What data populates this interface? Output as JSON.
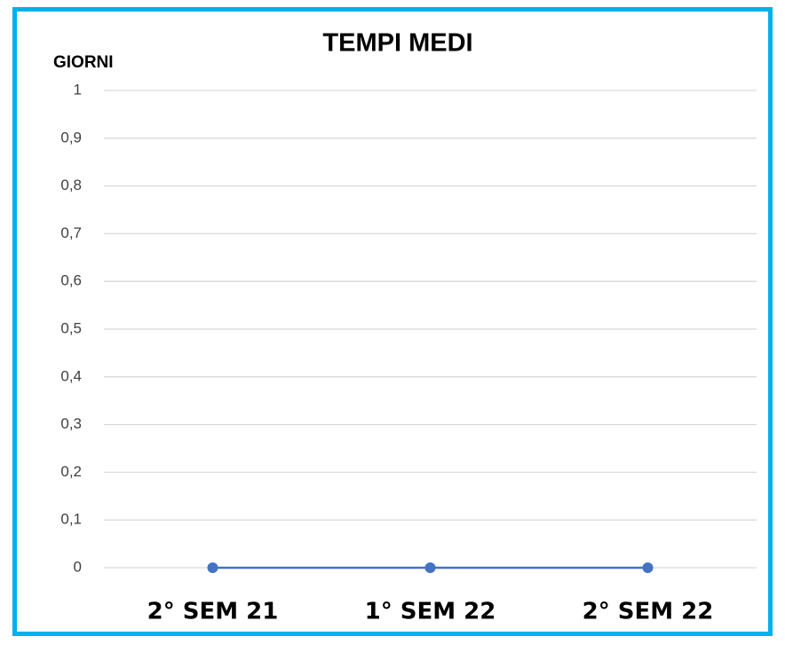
{
  "chart_data": {
    "type": "line",
    "title": "TEMPI MEDI",
    "y_label": "GIORNI",
    "categories": [
      "2° SEM 21",
      "1° SEM 22",
      "2° SEM 22"
    ],
    "values": [
      0,
      0,
      0
    ],
    "color": "#4472c4",
    "ylim": [
      0,
      1
    ],
    "yticks": [
      0,
      {
        "value": 0.1,
        "label": "0,1"
      },
      {
        "value": 0.2,
        "label": "0,2"
      },
      {
        "value": 0.3,
        "label": "0,3"
      },
      {
        "value": 0.4,
        "label": "0,4"
      },
      {
        "value": 0.5,
        "label": "0,5"
      },
      {
        "value": 0.6,
        "label": "0,6"
      },
      {
        "value": 0.7,
        "label": "0,7"
      },
      {
        "value": 0.8,
        "label": "0,8"
      },
      {
        "value": 0.9,
        "label": "0,9"
      },
      1
    ],
    "grid": true
  }
}
